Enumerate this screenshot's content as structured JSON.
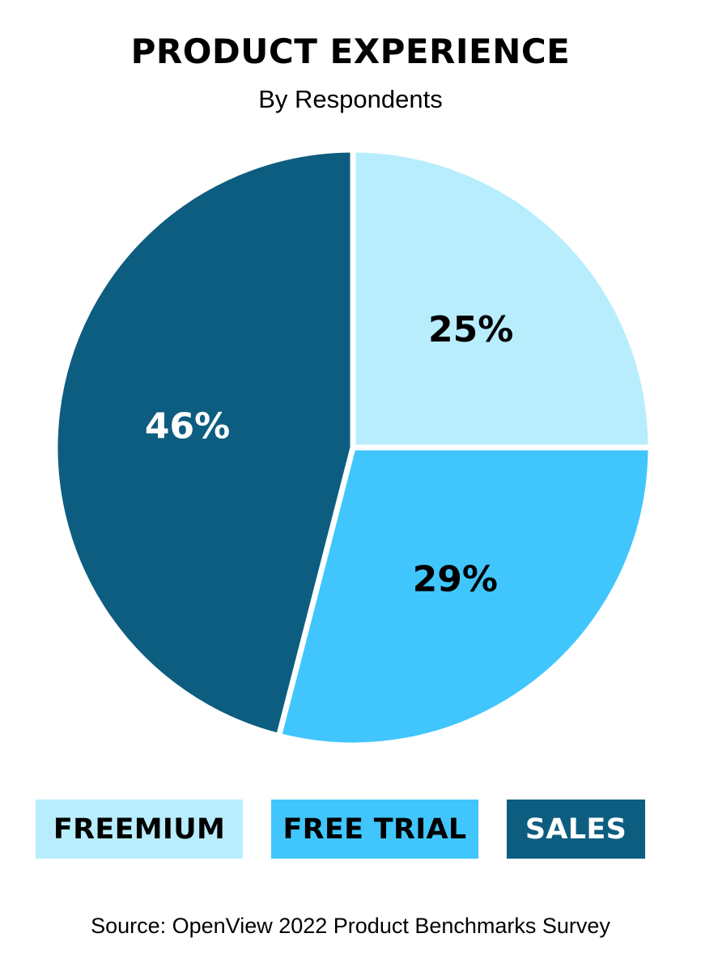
{
  "chart_data": {
    "type": "pie",
    "title": "PRODUCT EXPERIENCE",
    "subtitle": "By Respondents",
    "slices": [
      {
        "label": "FREEMIUM",
        "value": 25,
        "value_label": "25%",
        "color": "#b8edfd",
        "label_color": "#000000"
      },
      {
        "label": "FREE TRIAL",
        "value": 29,
        "value_label": "29%",
        "color": "#40c6fd",
        "label_color": "#000000"
      },
      {
        "label": "SALES",
        "value": 46,
        "value_label": "46%",
        "color": "#0d5d80",
        "label_color": "#ffffff"
      }
    ],
    "legend_placement": "bottom",
    "source": "Source: OpenView 2022 Product Benchmarks Survey"
  }
}
